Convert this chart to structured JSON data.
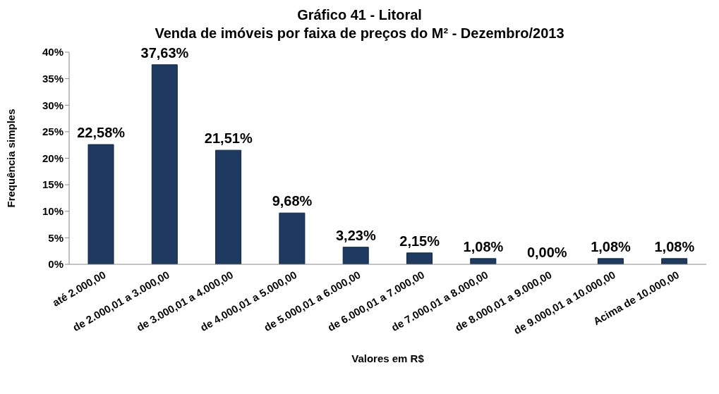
{
  "chart_data": {
    "type": "bar",
    "title": "Gráfico 41 - Litoral",
    "subtitle": "Venda de imóveis por faixa de preços do M² - Dezembro/2013",
    "xlabel": "Valores em R$",
    "ylabel": "Frequência simples",
    "categories": [
      "até 2.000,00",
      "de 2.000,01 a 3.000,00",
      "de 3.000,01 a 4.000,00",
      "de 4.000,01 a 5.000,00",
      "de 5.000,01 a 6.000,00",
      "de 6.000,01 a 7.000,00",
      "de 7.000,01 a 8.000,00",
      "de 8.000,01 a 9.000,00",
      "de 9.000,01 a 10.000,00",
      "Acima de 10.000,00"
    ],
    "values": [
      22.58,
      37.63,
      21.51,
      9.68,
      3.23,
      2.15,
      1.08,
      0,
      1.08,
      1.08
    ],
    "value_labels": [
      "22,58%",
      "37,63%",
      "21,51%",
      "9,68%",
      "3,23%",
      "2,15%",
      "1,08%",
      "0,00%",
      "1,08%",
      "1,08%"
    ],
    "color": "#1f3a60",
    "ylim": [
      0,
      40
    ],
    "yticks": [
      {
        "value": 0,
        "label": "0%"
      },
      {
        "value": 5,
        "label": "5%"
      },
      {
        "value": 10,
        "label": "10%"
      },
      {
        "value": 15,
        "label": "15%"
      },
      {
        "value": 20,
        "label": "20%"
      },
      {
        "value": 25,
        "label": "25%"
      },
      {
        "value": 30,
        "label": "30%"
      },
      {
        "value": 35,
        "label": "35%"
      },
      {
        "value": 40,
        "label": "40%"
      }
    ]
  }
}
